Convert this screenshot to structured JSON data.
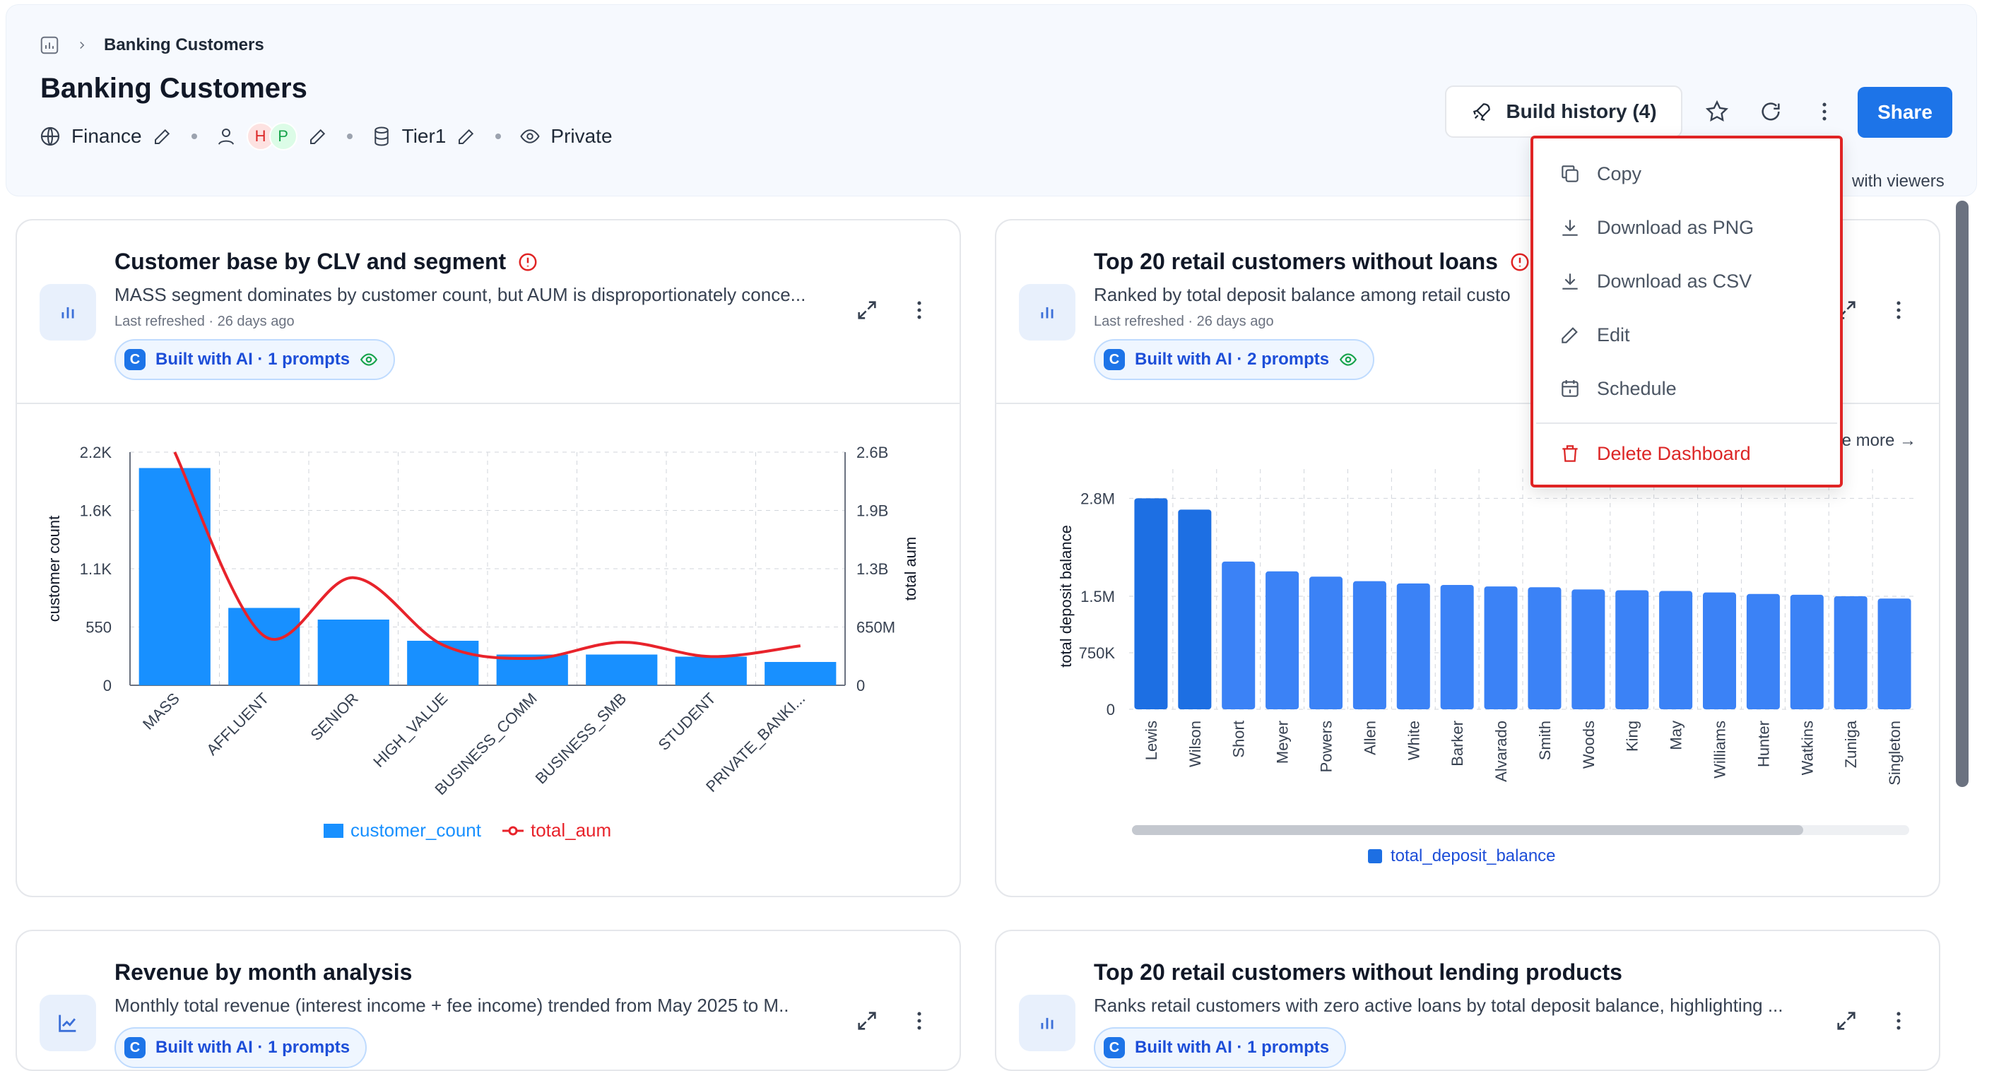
{
  "breadcrumb": {
    "current": "Banking Customers"
  },
  "page": {
    "title": "Banking Customers",
    "domain": "Finance",
    "owners": [
      "H",
      "P"
    ],
    "tier": "Tier1",
    "visibility": "Private"
  },
  "toolbar": {
    "build_history_label": "Build history (4)",
    "share_label": "Share",
    "viewers_text": "with viewers"
  },
  "menu": {
    "items": [
      {
        "label": "Copy",
        "icon": "copy-icon"
      },
      {
        "label": "Download as PNG",
        "icon": "download-icon"
      },
      {
        "label": "Download as CSV",
        "icon": "download-icon"
      },
      {
        "label": "Edit",
        "icon": "pencil-icon"
      },
      {
        "label": "Schedule",
        "icon": "calendar-icon"
      }
    ],
    "danger_item": {
      "label": "Delete Dashboard",
      "icon": "trash-icon"
    }
  },
  "cards": [
    {
      "title": "Customer base by CLV and segment",
      "description": "MASS segment dominates by customer count, but AUM is disproportionately conce...",
      "refreshed": "Last refreshed · 26 days ago",
      "ai_label": "Built with AI · 1 prompts"
    },
    {
      "title": "Top 20 retail customers without loans",
      "description": "Ranked by total deposit balance among retail custo",
      "refreshed": "Last refreshed · 26 days ago",
      "ai_label": "Built with AI · 2 prompts",
      "more_link": "e more →"
    },
    {
      "title": "Revenue by month analysis",
      "description": "Monthly total revenue (interest income + fee income) trended from May 2025 to M..",
      "ai_label": "Built with AI · 1 prompts"
    },
    {
      "title": "Top 20 retail customers without lending products",
      "description": "Ranks retail customers with zero active loans by total deposit balance, highlighting ...",
      "ai_label": "Built with AI · 1 prompts"
    }
  ],
  "chart_data": [
    {
      "type": "bar",
      "categories": [
        "MASS",
        "AFFLUENT",
        "SENIOR",
        "HIGH_VALUE",
        "BUSINESS_COMM",
        "BUSINESS_SMB",
        "STUDENT",
        "PRIVATE_BANKI..."
      ],
      "series": [
        {
          "name": "customer_count",
          "type": "bar",
          "axis": "left",
          "color": "#1890ff",
          "values": [
            2050,
            730,
            620,
            420,
            290,
            290,
            270,
            220
          ]
        },
        {
          "name": "total_aum",
          "type": "line",
          "axis": "right",
          "color": "#e8232b",
          "values": [
            2600000000,
            550000000,
            1200000000,
            450000000,
            300000000,
            480000000,
            320000000,
            440000000
          ]
        }
      ],
      "ylabel": "customer count",
      "y2label": "total aum",
      "yticks": [
        "0",
        "550",
        "1.1K",
        "1.6K",
        "2.2K"
      ],
      "y2ticks": [
        "0",
        "650M",
        "1.3B",
        "1.9B",
        "2.6B"
      ],
      "ylim": [
        0,
        2200
      ],
      "y2lim": [
        0,
        2600000000
      ],
      "legend": "bottom",
      "grid": true
    },
    {
      "type": "bar",
      "categories": [
        "Lewis",
        "Wilson",
        "Short",
        "Meyer",
        "Powers",
        "Allen",
        "White",
        "Barker",
        "Alvarado",
        "Smith",
        "Woods",
        "King",
        "May",
        "Williams",
        "Hunter",
        "Watkins",
        "Zuniga",
        "Singleton"
      ],
      "series": [
        {
          "name": "total_deposit_balance",
          "color": "#3b82f6",
          "values": [
            2800000,
            2650000,
            1960000,
            1830000,
            1760000,
            1700000,
            1670000,
            1650000,
            1630000,
            1620000,
            1590000,
            1580000,
            1570000,
            1550000,
            1530000,
            1520000,
            1500000,
            1470000
          ]
        }
      ],
      "ylabel": "total deposit balance",
      "yticks": [
        "0",
        "750K",
        "1.5M",
        "2.8M"
      ],
      "ylim": [
        0,
        3000000
      ],
      "legend": "bottom",
      "grid": true
    }
  ]
}
